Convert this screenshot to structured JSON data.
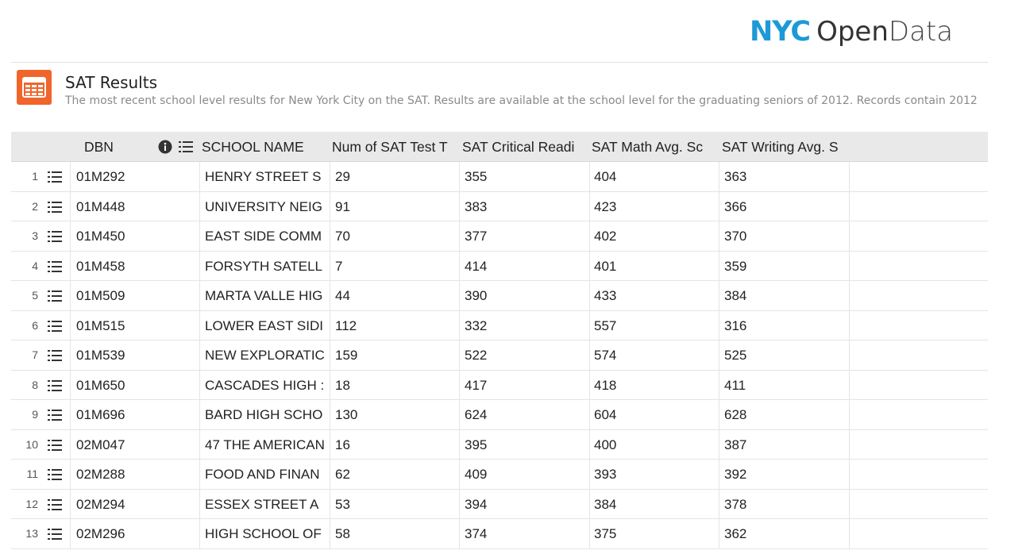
{
  "brand": {
    "nyc": "NYC",
    "open": "Open",
    "data": "Data",
    "color": "#1d9ad6"
  },
  "dataset": {
    "icon": "table-grid-icon",
    "title": "SAT Results",
    "description": "The most recent school level results for New York City on the SAT. Results are available at the school level for the graduating seniors of 2012. Records contain 2012"
  },
  "columns": {
    "dbn": "DBN",
    "school_name": "SCHOOL NAME",
    "num_takers": "Num of SAT Test T",
    "reading": "SAT Critical Readi",
    "math": "SAT Math Avg. Sc",
    "writing": "SAT Writing Avg. S"
  },
  "rows": [
    {
      "n": "1",
      "dbn": "01M292",
      "name": "HENRY STREET S",
      "takers": "29",
      "reading": "355",
      "math": "404",
      "writing": "363"
    },
    {
      "n": "2",
      "dbn": "01M448",
      "name": "UNIVERSITY NEIG",
      "takers": "91",
      "reading": "383",
      "math": "423",
      "writing": "366"
    },
    {
      "n": "3",
      "dbn": "01M450",
      "name": "EAST SIDE COMM",
      "takers": "70",
      "reading": "377",
      "math": "402",
      "writing": "370"
    },
    {
      "n": "4",
      "dbn": "01M458",
      "name": "FORSYTH SATELL",
      "takers": "7",
      "reading": "414",
      "math": "401",
      "writing": "359"
    },
    {
      "n": "5",
      "dbn": "01M509",
      "name": "MARTA VALLE HIG",
      "takers": "44",
      "reading": "390",
      "math": "433",
      "writing": "384"
    },
    {
      "n": "6",
      "dbn": "01M515",
      "name": "LOWER EAST SIDI",
      "takers": "112",
      "reading": "332",
      "math": "557",
      "writing": "316"
    },
    {
      "n": "7",
      "dbn": "01M539",
      "name": "NEW EXPLORATIC",
      "takers": "159",
      "reading": "522",
      "math": "574",
      "writing": "525"
    },
    {
      "n": "8",
      "dbn": "01M650",
      "name": "CASCADES HIGH :",
      "takers": "18",
      "reading": "417",
      "math": "418",
      "writing": "411"
    },
    {
      "n": "9",
      "dbn": "01M696",
      "name": "BARD HIGH SCHO",
      "takers": "130",
      "reading": "624",
      "math": "604",
      "writing": "628"
    },
    {
      "n": "10",
      "dbn": "02M047",
      "name": "47 THE AMERICAN",
      "takers": "16",
      "reading": "395",
      "math": "400",
      "writing": "387"
    },
    {
      "n": "11",
      "dbn": "02M288",
      "name": "FOOD AND FINAN",
      "takers": "62",
      "reading": "409",
      "math": "393",
      "writing": "392"
    },
    {
      "n": "12",
      "dbn": "02M294",
      "name": "ESSEX STREET A",
      "takers": "53",
      "reading": "394",
      "math": "384",
      "writing": "378"
    },
    {
      "n": "13",
      "dbn": "02M296",
      "name": "HIGH SCHOOL OF",
      "takers": "58",
      "reading": "374",
      "math": "375",
      "writing": "362"
    }
  ]
}
